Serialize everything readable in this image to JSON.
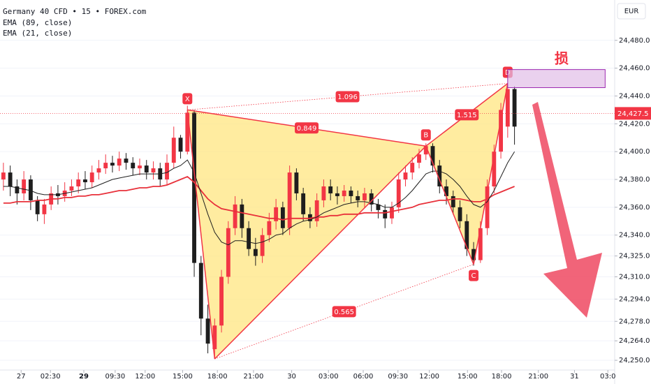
{
  "chart_data": {
    "type": "candlestick",
    "title": "Germany 40 CFD • 15 • FOREX.com",
    "currency": "EUR",
    "grid": true,
    "xlim": [
      -0.5,
      89.7
    ],
    "ylim": [
      24243,
      24509
    ],
    "yticks": [
      {
        "value": 24480,
        "label": "24,480.0"
      },
      {
        "value": 24460,
        "label": "24,460.0"
      },
      {
        "value": 24440,
        "label": "24,440.0"
      },
      {
        "value": 24420,
        "label": "24,420.0"
      },
      {
        "value": 24400,
        "label": "24,400.0"
      },
      {
        "value": 24380,
        "label": "24,380.0"
      },
      {
        "value": 24360,
        "label": "24,360.0"
      },
      {
        "value": 24340,
        "label": "24,340.0"
      },
      {
        "value": 24325,
        "label": "24,325.0"
      },
      {
        "value": 24310,
        "label": "24,310.0"
      },
      {
        "value": 24294,
        "label": "24,294.0"
      },
      {
        "value": 24278,
        "label": "24,278.0"
      },
      {
        "value": 24264,
        "label": "24,264.0"
      },
      {
        "value": 24250,
        "label": "24,250.0"
      }
    ],
    "xticks": [
      {
        "value": 2.6,
        "label": "27"
      },
      {
        "value": 6.9,
        "label": "02:30"
      },
      {
        "value": 11.8,
        "label": "29"
      },
      {
        "value": 16.4,
        "label": "09:30"
      },
      {
        "value": 20.8,
        "label": "12:00"
      },
      {
        "value": 26.3,
        "label": "15:00"
      },
      {
        "value": 31.4,
        "label": "18:00"
      },
      {
        "value": 36.7,
        "label": "21:00"
      },
      {
        "value": 42.3,
        "label": "30"
      },
      {
        "value": 47.7,
        "label": "03:00"
      },
      {
        "value": 52.8,
        "label": "06:00"
      },
      {
        "value": 57.9,
        "label": "09:30"
      },
      {
        "value": 62.5,
        "label": "12:00"
      },
      {
        "value": 68.1,
        "label": "15:00"
      },
      {
        "value": 73.1,
        "label": "18:00"
      },
      {
        "value": 78.5,
        "label": "21:00"
      },
      {
        "value": 83.8,
        "label": "31"
      },
      {
        "value": 88.7,
        "label": "03:0"
      }
    ],
    "up_color": "#f23645",
    "down_color": "#1e1e1e",
    "open": [
      24380,
      24385,
      24375,
      24370,
      24380,
      24365,
      24355,
      24362,
      24370,
      24368,
      24372,
      24375,
      24380,
      24378,
      24385,
      24388,
      24392,
      24390,
      24395,
      24392,
      24388,
      24390,
      24385,
      24388,
      24380,
      24392,
      24410,
      24400,
      24428,
      24320,
      24280,
      24258,
      24275,
      24310,
      24345,
      24362,
      24345,
      24330,
      24325,
      24340,
      24350,
      24360,
      24345,
      24385,
      24370,
      24355,
      24350,
      24365,
      24375,
      24370,
      24368,
      24372,
      24368,
      24365,
      24370,
      24362,
      24358,
      24352,
      24360,
      24380,
      24385,
      24392,
      24398,
      24404,
      24390,
      24375,
      24368,
      24360,
      24350,
      24330,
      24322,
      24345,
      24375,
      24400,
      24418,
      24445
    ],
    "high": [
      24392,
      24390,
      24380,
      24386,
      24383,
      24368,
      24366,
      24375,
      24376,
      24378,
      24380,
      24385,
      24386,
      24390,
      24394,
      24398,
      24397,
      24400,
      24399,
      24396,
      24395,
      24394,
      24393,
      24392,
      24398,
      24418,
      24412,
      24433,
      24430,
      24325,
      24290,
      24280,
      24315,
      24350,
      24368,
      24366,
      24350,
      24338,
      24345,
      24356,
      24366,
      24364,
      24390,
      24388,
      24374,
      24360,
      24370,
      24380,
      24380,
      24375,
      24376,
      24375,
      24372,
      24374,
      24373,
      24366,
      24362,
      24364,
      24385,
      24390,
      24396,
      24402,
      24406,
      24406,
      24394,
      24380,
      24372,
      24365,
      24355,
      24335,
      24350,
      24380,
      24405,
      24435,
      24449,
      24447
    ],
    "low": [
      24372,
      24368,
      24362,
      24365,
      24358,
      24350,
      24348,
      24358,
      24362,
      24364,
      24368,
      24370,
      24373,
      24374,
      24380,
      24384,
      24385,
      24386,
      24387,
      24383,
      24383,
      24380,
      24380,
      24375,
      24376,
      24388,
      24395,
      24398,
      24310,
      24268,
      24255,
      24251,
      24270,
      24305,
      24340,
      24338,
      24325,
      24318,
      24320,
      24335,
      24344,
      24340,
      24340,
      24365,
      24350,
      24345,
      24346,
      24360,
      24365,
      24362,
      24364,
      24363,
      24360,
      24360,
      24357,
      24352,
      24345,
      24348,
      24356,
      24375,
      24380,
      24388,
      24394,
      24385,
      24370,
      24362,
      24355,
      24345,
      24325,
      24318,
      24320,
      24340,
      24370,
      24395,
      24410,
      24405
    ],
    "close": [
      24385,
      24375,
      24370,
      24380,
      24365,
      24355,
      24362,
      24370,
      24368,
      24372,
      24375,
      24380,
      24378,
      24385,
      24388,
      24392,
      24390,
      24395,
      24392,
      24388,
      24390,
      24385,
      24388,
      24380,
      24392,
      24410,
      24400,
      24428,
      24320,
      24280,
      24262,
      24275,
      24310,
      24345,
      24362,
      24345,
      24330,
      24325,
      24340,
      24350,
      24360,
      24345,
      24385,
      24370,
      24355,
      24350,
      24365,
      24375,
      24370,
      24368,
      24372,
      24368,
      24365,
      24370,
      24362,
      24358,
      24352,
      24360,
      24380,
      24385,
      24392,
      24398,
      24404,
      24390,
      24375,
      24368,
      24360,
      24350,
      24330,
      24322,
      24345,
      24375,
      24400,
      24430,
      24445,
      24418
    ],
    "series": [
      {
        "name": "EMA (89, close)",
        "color": "#e8303a",
        "values": [
          24363,
          24363,
          24364,
          24364,
          24364,
          24365,
          24365,
          24366,
          24366,
          24367,
          24367,
          24368,
          24368,
          24369,
          24369,
          24370,
          24371,
          24372,
          24372,
          24373,
          24374,
          24374,
          24375,
          24375,
          24376,
          24378,
          24380,
          24382,
          24378,
          24372,
          24366,
          24362,
          24359,
          24358,
          24357,
          24356,
          24355,
          24354,
          24353,
          24352,
          24352,
          24351,
          24352,
          24352,
          24352,
          24352,
          24353,
          24353,
          24354,
          24354,
          24355,
          24355,
          24355,
          24356,
          24356,
          24356,
          24356,
          24357,
          24358,
          24359,
          24360,
          24362,
          24363,
          24364,
          24365,
          24365,
          24366,
          24366,
          24365,
          24364,
          24364,
          24366,
          24369,
          24371,
          24373,
          24375
        ]
      },
      {
        "name": "EMA (21, close)",
        "color": "#1e1e1e",
        "values": [
          24375,
          24375,
          24374,
          24373,
          24372,
          24370,
          24369,
          24369,
          24369,
          24370,
          24371,
          24372,
          24373,
          24374,
          24376,
          24378,
          24380,
          24381,
          24382,
          24383,
          24384,
          24384,
          24384,
          24384,
          24385,
          24388,
          24390,
          24394,
          24385,
          24370,
          24355,
          24342,
          24335,
          24333,
          24336,
          24336,
          24335,
          24334,
          24335,
          24337,
          24340,
          24341,
          24345,
          24348,
          24350,
          24351,
          24353,
          24356,
          24358,
          24360,
          24362,
          24363,
          24364,
          24364,
          24363,
          24362,
          24360,
          24360,
          24363,
          24367,
          24372,
          24378,
          24384,
          24386,
          24386,
          24384,
          24380,
          24375,
          24368,
          24362,
          24360,
          24364,
          24372,
          24382,
          24392,
          24400
        ]
      }
    ],
    "last_price": {
      "value": 24427.5,
      "label": "24,427.5"
    },
    "pattern": {
      "color": "#f23645",
      "fill": "#ffe680",
      "points": [
        {
          "label": "X",
          "index": 27,
          "price": 24430
        },
        {
          "label": null,
          "index": 31,
          "price": 24251
        },
        {
          "label": "B",
          "index": 62,
          "price": 24404
        },
        {
          "label": "C",
          "index": 69,
          "price": 24319
        },
        {
          "label": "D",
          "index": 74,
          "price": 24449
        }
      ],
      "ratios": [
        {
          "from": 0,
          "to": 4,
          "value": 1.096
        },
        {
          "from": 0,
          "to": 2,
          "value": 0.849
        },
        {
          "from": 2,
          "to": 4,
          "value": 1.515
        },
        {
          "from": 1,
          "to": 3,
          "value": 0.565
        }
      ]
    },
    "stop_zone": {
      "label": "损",
      "top": 24459,
      "bottom": 24446,
      "end": 88.3
    }
  }
}
